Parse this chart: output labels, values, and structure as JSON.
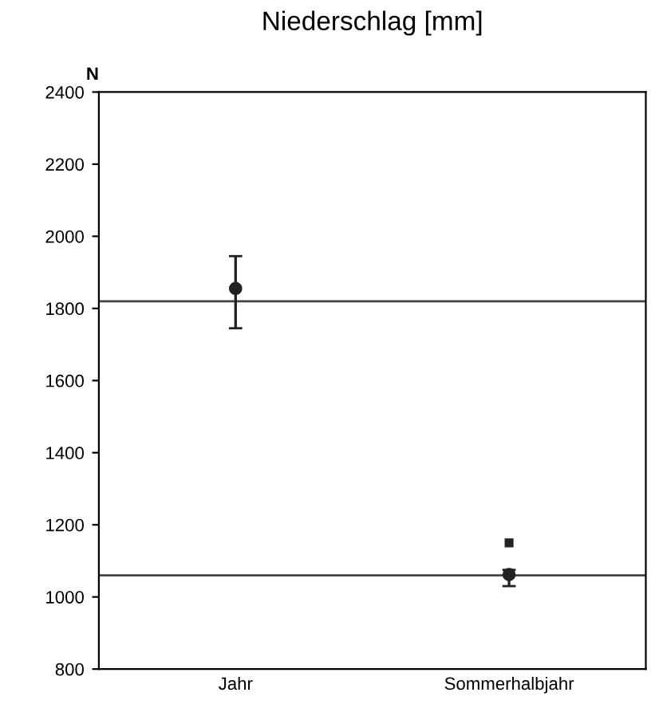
{
  "chart_data": {
    "type": "scatter",
    "title": "Niederschlag [mm]",
    "ylabel": "N",
    "categories": [
      "Jahr",
      "Sommerhalbjahr"
    ],
    "series": [
      {
        "color": "#222222",
        "values": [
          1855,
          1062
        ],
        "errors": [
          [
            1745,
            1945
          ],
          [
            1030,
            1075
          ]
        ],
        "marker": "circle"
      },
      {
        "color": "#222222",
        "values": [
          null,
          1150
        ],
        "marker": "square"
      }
    ],
    "ylim": [
      800,
      2400
    ],
    "yticks": [
      800,
      1000,
      1200,
      1400,
      1600,
      1800,
      2000,
      2200,
      2400
    ],
    "ref_lines": [
      {
        "axis": "y",
        "value": 1820,
        "color": "#444444"
      },
      {
        "axis": "y",
        "value": 1060,
        "color": "#444444"
      }
    ],
    "grid": false
  }
}
